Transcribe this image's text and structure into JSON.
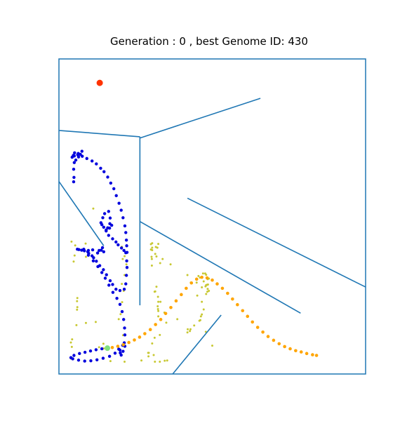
{
  "chart_data": {
    "type": "scatter",
    "title": "Generation : 0 , best Genome ID: 430",
    "xlim": [
      0,
      100
    ],
    "ylim": [
      0,
      100
    ],
    "grid": false,
    "frame_color": "#1f77b4",
    "walls": [
      {
        "x1": 0,
        "y1": 77.3,
        "x2": 26.4,
        "y2": 75.3
      },
      {
        "x1": 26.4,
        "y1": 75.3,
        "x2": 26.4,
        "y2": 21.8
      },
      {
        "x1": 26.4,
        "y1": 74.9,
        "x2": 65.7,
        "y2": 87.5
      },
      {
        "x1": 0,
        "y1": 61.1,
        "x2": 14.6,
        "y2": 40.7
      },
      {
        "x1": 41.9,
        "y1": 55.8,
        "x2": 100,
        "y2": 27.6
      },
      {
        "x1": 26.4,
        "y1": 48.4,
        "x2": 78.8,
        "y2": 19.3
      },
      {
        "x1": 37.1,
        "y1": 0,
        "x2": 52.9,
        "y2": 18.7
      }
    ],
    "wall_color": "#1f77b4",
    "goal": {
      "x": 13.3,
      "y": 92.4,
      "color": "#ff3300"
    },
    "start": {
      "x": 15.8,
      "y": 8.2,
      "color": "#7fe07f"
    },
    "best_path": {
      "color": "#ffa500",
      "points": [
        [
          15.8,
          8.2
        ],
        [
          17.4,
          8.4
        ],
        [
          19.2,
          8.8
        ],
        [
          21.0,
          9.3
        ],
        [
          22.8,
          10.0
        ],
        [
          24.6,
          10.8
        ],
        [
          26.3,
          11.7
        ],
        [
          28.0,
          12.8
        ],
        [
          29.8,
          14.1
        ],
        [
          31.5,
          15.7
        ],
        [
          33.2,
          17.3
        ],
        [
          34.8,
          19.2
        ],
        [
          36.5,
          21.1
        ],
        [
          38.2,
          23.2
        ],
        [
          39.9,
          25.2
        ],
        [
          41.5,
          27.2
        ],
        [
          43.2,
          28.9
        ],
        [
          44.9,
          30.1
        ],
        [
          46.6,
          30.7
        ],
        [
          48.3,
          30.5
        ],
        [
          50.0,
          29.8
        ],
        [
          51.6,
          28.6
        ],
        [
          53.3,
          27.2
        ],
        [
          55.0,
          25.6
        ],
        [
          56.6,
          23.8
        ],
        [
          58.2,
          22.0
        ],
        [
          59.9,
          20.1
        ],
        [
          61.5,
          18.3
        ],
        [
          63.1,
          16.5
        ],
        [
          64.8,
          14.8
        ],
        [
          66.5,
          13.3
        ],
        [
          68.2,
          11.9
        ],
        [
          70.0,
          10.7
        ],
        [
          71.8,
          9.6
        ],
        [
          73.6,
          8.7
        ],
        [
          75.4,
          8.0
        ],
        [
          77.2,
          7.4
        ],
        [
          79.0,
          7.0
        ],
        [
          80.8,
          6.5
        ],
        [
          82.7,
          6.1
        ],
        [
          84.0,
          5.9
        ]
      ]
    },
    "other_paths": {
      "color": "#0000dd",
      "points": [
        [
          15.8,
          8.2
        ],
        [
          14.0,
          8.0
        ],
        [
          12.1,
          7.7
        ],
        [
          10.3,
          7.3
        ],
        [
          8.5,
          6.9
        ],
        [
          6.7,
          6.5
        ],
        [
          4.9,
          5.9
        ],
        [
          3.9,
          5.2
        ],
        [
          4.5,
          4.8
        ],
        [
          6.4,
          4.4
        ],
        [
          8.4,
          4.1
        ],
        [
          10.4,
          4.2
        ],
        [
          12.4,
          4.5
        ],
        [
          14.4,
          5.0
        ],
        [
          16.5,
          5.6
        ],
        [
          18.3,
          6.6
        ],
        [
          19.9,
          7.6
        ],
        [
          21.5,
          8.8
        ],
        [
          20.8,
          9.1
        ],
        [
          19.5,
          7.9
        ],
        [
          20.0,
          6.7
        ],
        [
          20.3,
          6.0
        ],
        [
          20.9,
          7.2
        ],
        [
          21.3,
          9.9
        ],
        [
          21.5,
          12.4
        ],
        [
          21.4,
          14.6
        ],
        [
          21.1,
          17.3
        ],
        [
          20.6,
          19.8
        ],
        [
          19.9,
          22.1
        ],
        [
          18.9,
          24.0
        ],
        [
          17.6,
          25.9
        ],
        [
          16.3,
          28.2
        ],
        [
          15.1,
          30.4
        ],
        [
          14.0,
          32.2
        ],
        [
          12.7,
          34.1
        ],
        [
          11.2,
          35.9
        ],
        [
          9.6,
          37.7
        ],
        [
          8.1,
          39.6
        ],
        [
          6.5,
          39.5
        ],
        [
          6.0,
          39.6
        ],
        [
          9.4,
          38.8
        ],
        [
          9.7,
          38.3
        ],
        [
          10.8,
          37.5
        ],
        [
          11.3,
          36.9
        ],
        [
          12.2,
          35.8
        ],
        [
          13.3,
          34.4
        ],
        [
          14.5,
          33.1
        ],
        [
          15.5,
          31.5
        ],
        [
          16.7,
          29.6
        ],
        [
          17.5,
          28.4
        ],
        [
          18.6,
          26.9
        ],
        [
          19.9,
          26.5
        ],
        [
          21.3,
          26.9
        ],
        [
          21.8,
          28.6
        ],
        [
          22.0,
          31.3
        ],
        [
          22.2,
          33.8
        ],
        [
          22.1,
          35.9
        ],
        [
          22.2,
          38.6
        ],
        [
          22.1,
          40.7
        ],
        [
          22.0,
          42.5
        ],
        [
          21.8,
          44.9
        ],
        [
          21.5,
          47.0
        ],
        [
          20.9,
          49.6
        ],
        [
          20.3,
          52.0
        ],
        [
          19.6,
          54.2
        ],
        [
          18.7,
          56.6
        ],
        [
          17.9,
          58.8
        ],
        [
          16.9,
          60.6
        ],
        [
          15.9,
          62.5
        ],
        [
          14.7,
          64.2
        ],
        [
          13.6,
          65.3
        ],
        [
          12.2,
          66.7
        ],
        [
          10.8,
          67.6
        ],
        [
          9.1,
          68.4
        ],
        [
          7.6,
          69.1
        ],
        [
          6.1,
          69.6
        ],
        [
          5.1,
          70.2
        ],
        [
          4.7,
          69.4
        ],
        [
          4.3,
          68.8
        ],
        [
          5.0,
          67.1
        ],
        [
          4.8,
          65.0
        ],
        [
          4.9,
          62.4
        ],
        [
          4.8,
          61.0
        ],
        [
          5.5,
          67.9
        ],
        [
          6.4,
          68.9
        ],
        [
          7.0,
          69.7
        ],
        [
          7.5,
          70.7
        ],
        [
          6.3,
          70.0
        ],
        [
          5.0,
          69.2
        ],
        [
          21.8,
          38.5
        ],
        [
          21.2,
          39.2
        ],
        [
          20.4,
          40.0
        ],
        [
          19.3,
          41.0
        ],
        [
          18.6,
          41.9
        ],
        [
          17.5,
          42.9
        ],
        [
          16.2,
          44.0
        ],
        [
          15.4,
          45.4
        ],
        [
          14.6,
          46.6
        ],
        [
          14.0,
          47.4
        ],
        [
          13.7,
          48.0
        ],
        [
          14.3,
          49.6
        ],
        [
          14.9,
          50.9
        ],
        [
          16.2,
          51.6
        ],
        [
          16.7,
          49.5
        ],
        [
          16.6,
          47.7
        ],
        [
          15.9,
          46.4
        ],
        [
          15.4,
          45.7
        ],
        [
          16.5,
          46.3
        ],
        [
          17.2,
          47.2
        ],
        [
          14.2,
          40.1
        ],
        [
          14.6,
          38.8
        ],
        [
          13.8,
          39.3
        ],
        [
          13.1,
          39.2
        ],
        [
          12.6,
          38.4
        ],
        [
          11.0,
          39.4
        ],
        [
          9.6,
          39.2
        ],
        [
          8.3,
          39.1
        ],
        [
          7.4,
          39.3
        ]
      ]
    },
    "sensors": {
      "color": "#c8c832",
      "points": [
        [
          3.9,
          4.9
        ],
        [
          4.2,
          8.6
        ],
        [
          3.9,
          10.0
        ],
        [
          4.3,
          11.0
        ],
        [
          5.7,
          15.5
        ],
        [
          5.9,
          20.4
        ],
        [
          6.0,
          21.2
        ],
        [
          5.9,
          23.1
        ],
        [
          6.0,
          24.1
        ],
        [
          4.1,
          42.0
        ],
        [
          5.3,
          40.8
        ],
        [
          5.1,
          37.6
        ],
        [
          4.8,
          35.7
        ],
        [
          8.7,
          41.4
        ],
        [
          8.8,
          37.2
        ],
        [
          11.2,
          52.5
        ],
        [
          12.0,
          16.5
        ],
        [
          8.8,
          16.2
        ],
        [
          13.1,
          8.5
        ],
        [
          14.5,
          9.6
        ],
        [
          14.6,
          8.1
        ],
        [
          16.8,
          4.1
        ],
        [
          21.4,
          3.9
        ],
        [
          20.9,
          12.3
        ],
        [
          19.5,
          17.4
        ],
        [
          20.1,
          19.0
        ],
        [
          20.6,
          22.8
        ],
        [
          21.1,
          26.4
        ],
        [
          20.5,
          28.6
        ],
        [
          21.4,
          31.4
        ],
        [
          21.4,
          37.4
        ],
        [
          22.0,
          34.8
        ],
        [
          20.8,
          36.5
        ],
        [
          20.5,
          40.4
        ],
        [
          30.0,
          41.2
        ],
        [
          30.4,
          40.1
        ],
        [
          30.4,
          41.5
        ],
        [
          30.3,
          36.5
        ],
        [
          30.4,
          39.3
        ],
        [
          31.8,
          37.3
        ],
        [
          31.4,
          38.1
        ],
        [
          32.1,
          40.1
        ],
        [
          30.3,
          34.4
        ],
        [
          30.2,
          37.2
        ],
        [
          31.6,
          40.3
        ],
        [
          32.4,
          41.3
        ],
        [
          30.0,
          39.5
        ],
        [
          33.8,
          36.5
        ],
        [
          33.0,
          35.2
        ],
        [
          36.4,
          34.8
        ],
        [
          31.8,
          27.7
        ],
        [
          31.4,
          26.2
        ],
        [
          32.3,
          24.5
        ],
        [
          32.4,
          22.9
        ],
        [
          32.3,
          20.6
        ],
        [
          32.4,
          20.0
        ],
        [
          32.2,
          21.5
        ],
        [
          32.4,
          18.3
        ],
        [
          31.2,
          26.1
        ],
        [
          33.1,
          22.9
        ],
        [
          34.4,
          19.5
        ],
        [
          38.6,
          17.4
        ],
        [
          35.0,
          16.3
        ],
        [
          32.9,
          12.4
        ],
        [
          31.2,
          11.5
        ],
        [
          30.4,
          9.7
        ],
        [
          29.3,
          6.7
        ],
        [
          29.1,
          6.7
        ],
        [
          29.2,
          5.6
        ],
        [
          30.9,
          6.0
        ],
        [
          31.3,
          3.9
        ],
        [
          32.9,
          3.9
        ],
        [
          34.5,
          4.2
        ],
        [
          35.3,
          4.3
        ],
        [
          26.9,
          4.3
        ],
        [
          42.0,
          14.2
        ],
        [
          41.9,
          13.2
        ],
        [
          44.1,
          15.4
        ],
        [
          45.8,
          16.9
        ],
        [
          46.1,
          17.1
        ],
        [
          46.6,
          18.9
        ],
        [
          47.2,
          20.5
        ],
        [
          46.6,
          22.9
        ],
        [
          48.0,
          25.4
        ],
        [
          48.4,
          26.1
        ],
        [
          48.0,
          28.2
        ],
        [
          47.2,
          29.4
        ],
        [
          46.5,
          30.8
        ],
        [
          47.0,
          31.9
        ],
        [
          48.0,
          31.5
        ],
        [
          48.5,
          30.1
        ],
        [
          48.3,
          28.3
        ],
        [
          48.5,
          27.0
        ],
        [
          46.6,
          27.5
        ],
        [
          44.9,
          29.0
        ],
        [
          45.5,
          31.1
        ],
        [
          47.7,
          31.9
        ],
        [
          48.9,
          30.3
        ],
        [
          47.8,
          27.8
        ],
        [
          48.9,
          26.4
        ],
        [
          41.9,
          31.4
        ],
        [
          46.0,
          30.6
        ],
        [
          45.1,
          24.9
        ],
        [
          48.6,
          28.4
        ],
        [
          43.0,
          29.0
        ],
        [
          46.3,
          18.3
        ],
        [
          50.0,
          9.0
        ],
        [
          47.9,
          13.4
        ],
        [
          42.7,
          13.6
        ],
        [
          42.9,
          14.2
        ]
      ]
    }
  }
}
